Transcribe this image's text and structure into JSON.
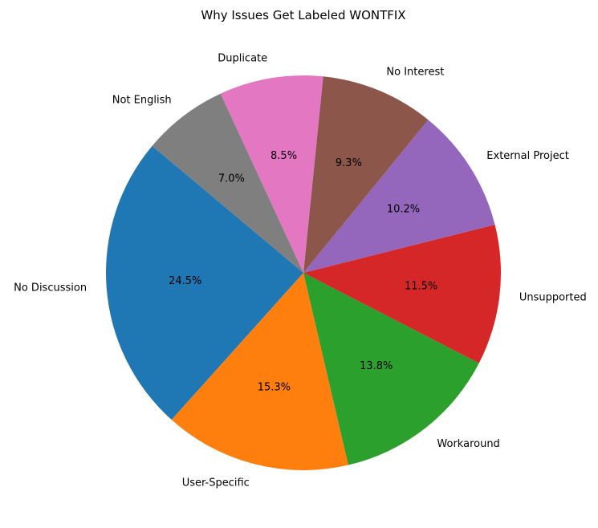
{
  "chart_data": {
    "type": "pie",
    "title": "Why Issues Get Labeled WONTFIX",
    "categories": [
      "No Discussion",
      "User-Specific",
      "Workaround",
      "Unsupported",
      "External Project",
      "No Interest",
      "Duplicate",
      "Not English"
    ],
    "values": [
      24.5,
      15.3,
      13.8,
      11.5,
      10.2,
      9.3,
      8.5,
      7.0
    ],
    "percent_labels": [
      "24.5%",
      "15.3%",
      "13.8%",
      "11.5%",
      "10.2%",
      "9.3%",
      "8.5%",
      "7.0%"
    ],
    "colors": [
      "#1f77b4",
      "#ff7f0e",
      "#2ca02c",
      "#d62728",
      "#9467bd",
      "#8c564b",
      "#e377c2",
      "#7f7f7f"
    ],
    "start_angle_deg": 140,
    "direction": "counterclockwise"
  }
}
